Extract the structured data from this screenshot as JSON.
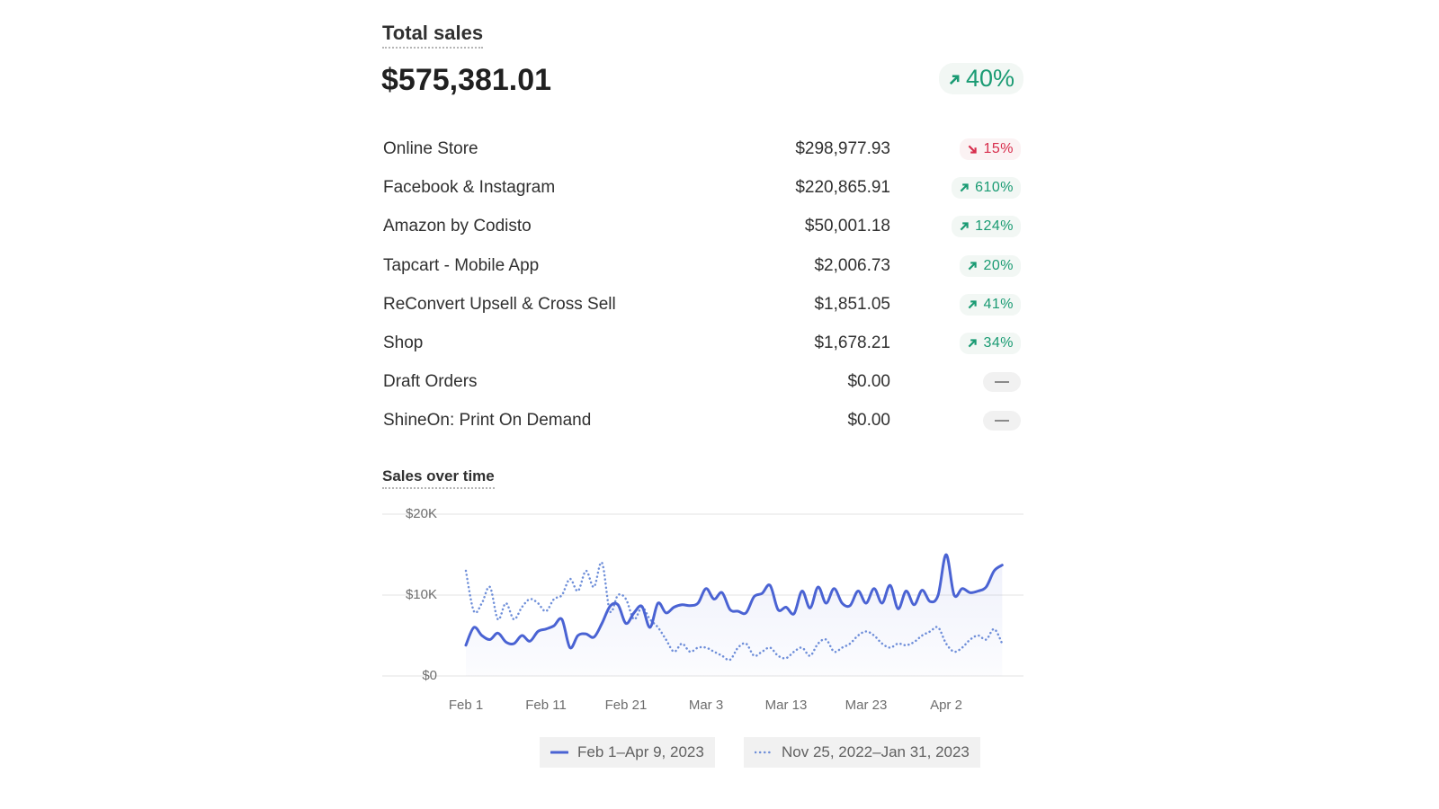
{
  "header": {
    "title": "Total sales",
    "total": "$575,381.01",
    "change": "40%",
    "direction": "up"
  },
  "table": {
    "rows": [
      {
        "name": "Online Store",
        "amount": "$298,977.93",
        "change": "15%",
        "direction": "down"
      },
      {
        "name": "Facebook & Instagram",
        "amount": "$220,865.91",
        "change": "610%",
        "direction": "up"
      },
      {
        "name": "Amazon by Codisto",
        "amount": "$50,001.18",
        "change": "124%",
        "direction": "up"
      },
      {
        "name": "Tapcart - Mobile App",
        "amount": "$2,006.73",
        "change": "20%",
        "direction": "up"
      },
      {
        "name": "ReConvert Upsell & Cross Sell",
        "amount": "$1,851.05",
        "change": "41%",
        "direction": "up"
      },
      {
        "name": "Shop",
        "amount": "$1,678.21",
        "change": "34%",
        "direction": "up"
      },
      {
        "name": "Draft Orders",
        "amount": "$0.00"
      },
      {
        "name": "ShineOn: Print On Demand",
        "amount": "$0.00"
      }
    ]
  },
  "chart_data": {
    "type": "line",
    "title": "Sales over time",
    "categories": [
      "Feb 1",
      null,
      null,
      null,
      null,
      null,
      null,
      null,
      null,
      null,
      "Feb 11",
      null,
      null,
      null,
      null,
      null,
      null,
      null,
      null,
      null,
      "Feb 21",
      null,
      null,
      null,
      null,
      null,
      null,
      null,
      null,
      null,
      "Mar 3",
      null,
      null,
      null,
      null,
      null,
      null,
      null,
      null,
      null,
      "Mar 13",
      null,
      null,
      null,
      null,
      null,
      null,
      null,
      null,
      null,
      "Mar 23",
      null,
      null,
      null,
      null,
      null,
      null,
      null,
      null,
      null,
      "Apr 2",
      null,
      null,
      null,
      null,
      null,
      null,
      null
    ],
    "series": [
      {
        "name": "Feb 1–Apr 9, 2023",
        "color": "#4a63d3",
        "style": "solid",
        "values": [
          3800,
          6000,
          5000,
          4500,
          5300,
          4200,
          4000,
          5000,
          4300,
          5500,
          5800,
          6200,
          7000,
          3500,
          5000,
          5200,
          4800,
          6500,
          8600,
          8800,
          6500,
          7800,
          8600,
          6000,
          9000,
          7800,
          8500,
          8800,
          8700,
          9000,
          10800,
          9500,
          10300,
          8200,
          8000,
          7800,
          9800,
          10200,
          11200,
          8200,
          8500,
          7700,
          10500,
          8400,
          11000,
          9000,
          10800,
          9000,
          8700,
          10500,
          9000,
          10800,
          9000,
          11200,
          8300,
          10500,
          8800,
          10600,
          9200,
          10000,
          15000,
          10000,
          10800,
          10300,
          10500,
          11000,
          13000,
          13700
        ]
      },
      {
        "name": "Nov 25, 2022–Jan 31, 2023",
        "color": "#6f8fd9",
        "style": "dotted",
        "values": [
          13000,
          8000,
          9000,
          11000,
          7000,
          9000,
          7000,
          8500,
          9500,
          9000,
          8000,
          9500,
          10000,
          12000,
          10500,
          13000,
          11000,
          14000,
          8000,
          10000,
          9500,
          7000,
          8500,
          7000,
          6000,
          4500,
          3000,
          4000,
          3000,
          3500,
          3500,
          3000,
          2500,
          2000,
          3500,
          4000,
          2500,
          3000,
          3500,
          2500,
          2200,
          3000,
          3500,
          2500,
          4000,
          4500,
          3000,
          3500,
          4000,
          5000,
          5500,
          5000,
          4000,
          3500,
          4000,
          3800,
          4200,
          5000,
          5500,
          6000,
          4000,
          3000,
          3500,
          4500,
          5000,
          4500,
          5800,
          4000
        ]
      }
    ],
    "ylim": [
      0,
      20000
    ],
    "yticks": [
      {
        "value": 0,
        "label": "$0"
      },
      {
        "value": 10000,
        "label": "$10K"
      },
      {
        "value": 20000,
        "label": "$20K"
      }
    ],
    "grid": true
  }
}
